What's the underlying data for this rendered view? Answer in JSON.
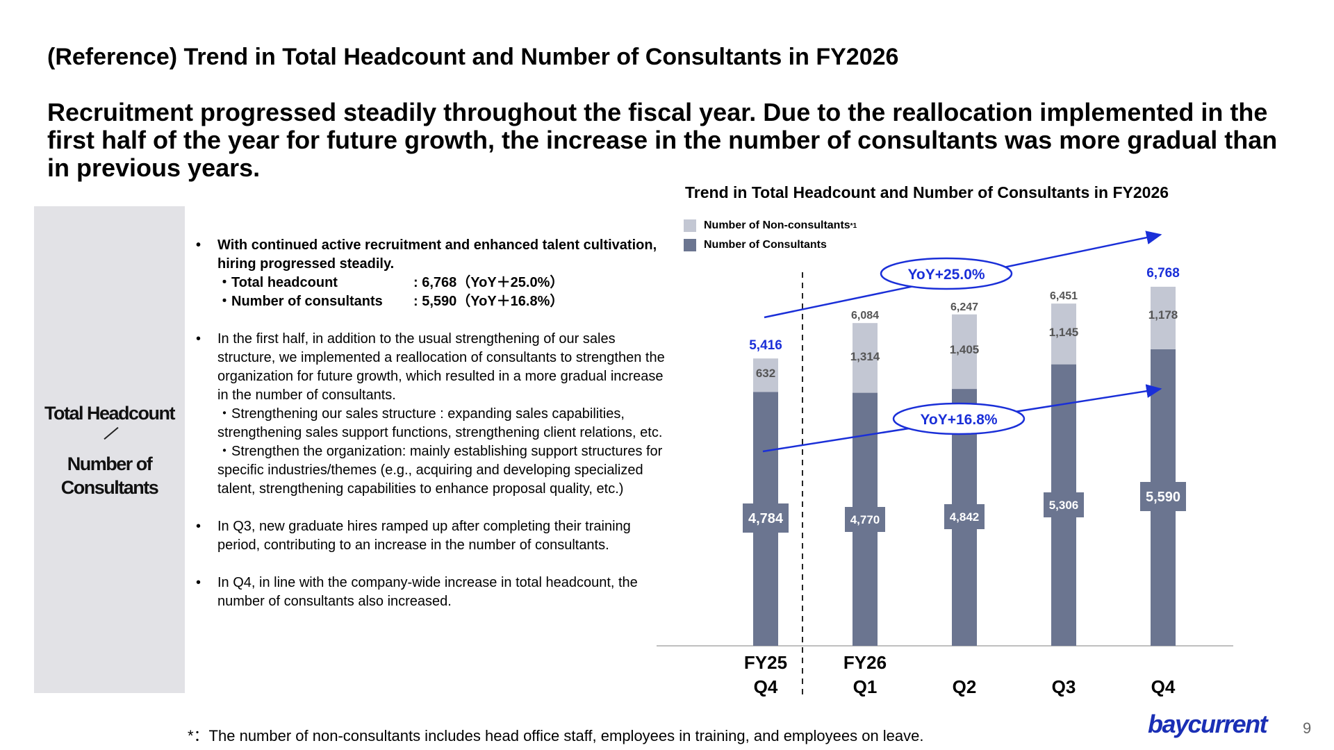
{
  "title": "(Reference) Trend in Total Headcount and Number of Consultants in FY2026",
  "subtitle": "Recruitment progressed steadily throughout the fiscal year. Due to the reallocation implemented in the first half of the year for future growth, the increase in the number of consultants was more gradual than in previous years.",
  "side_panel": {
    "line1": "Total Headcount",
    "separator": "／",
    "line2a": "Number of",
    "line2b": "Consultants"
  },
  "bullets": {
    "b1_text": "With continued active recruitment and enhanced talent cultivation, hiring progressed steadily.",
    "b1_items": [
      {
        "label": "・Total headcount",
        "value": ": 6,768（YoY＋25.0%）"
      },
      {
        "label": "・Number of consultants",
        "value": ": 5,590（YoY＋16.8%）"
      }
    ],
    "b2_text": "In the first half, in addition to the usual strengthening of our sales structure, we implemented a reallocation of consultants to strengthen  the organization for future growth, which resulted in a more gradual increase in the number of consultants.",
    "b2_sub1": "・Strengthening our sales structure : expanding sales capabilities, strengthening sales support functions, strengthening client relations, etc.",
    "b2_sub2": "・Strengthen the organization: mainly establishing support structures for specific industries/themes (e.g., acquiring and developing specialized talent, strengthening capabilities to enhance proposal quality, etc.)",
    "b3_text": "In Q3, new graduate hires ramped up after completing their training period, contributing to an increase in the number of consultants.",
    "b4_text": "In Q4, in line with the company-wide increase in total headcount, the number of consultants also increased.",
    "bullet_char": "•"
  },
  "chart_data": {
    "type": "bar",
    "stacked": true,
    "title": "Trend in Total Headcount and Number of Consultants in FY2026",
    "categories": [
      [
        "FY25",
        "Q4"
      ],
      [
        "FY26",
        "Q1"
      ],
      [
        "",
        "Q2"
      ],
      [
        "",
        "Q3"
      ],
      [
        "",
        "Q4"
      ]
    ],
    "series": [
      {
        "name": "Number of Consultants",
        "values": [
          4784,
          4770,
          4842,
          5306,
          5590
        ],
        "color": "#6b7590"
      },
      {
        "name": "Number of Non-consultants",
        "name_suffix": "*1",
        "values": [
          632,
          1314,
          1405,
          1145,
          1178
        ],
        "color": "#c3c7d3"
      }
    ],
    "totals": [
      5416,
      6084,
      6247,
      6451,
      6768
    ],
    "consultant_labels": [
      "4,784",
      "4,770",
      "4,842",
      "5,306",
      "5,590"
    ],
    "nonconsultant_labels": [
      "632",
      "1,314",
      "1,405",
      "1,145",
      "1,178"
    ],
    "total_labels": [
      "5,416",
      "6,084",
      "6,247",
      "6,451",
      "6,768"
    ],
    "highlight_color": "#1a2fd8",
    "annotations": [
      {
        "text": "YoY+25.0%",
        "from": "FY25 Q4 total",
        "to": "FY26 Q4 total"
      },
      {
        "text": "YoY+16.8%",
        "from": "FY25 Q4 consultants",
        "to": "FY26 Q4 consultants"
      }
    ],
    "divider": "dashed line between FY25 Q4 and FY26 Q1",
    "ylim": [
      0,
      7300
    ],
    "grid": false,
    "legend_position": "top-left"
  },
  "footnote": "*：The number of non-consultants includes head office staff, employees in training, and employees on leave.",
  "logo_text": "baycurrent",
  "page_number": "9"
}
